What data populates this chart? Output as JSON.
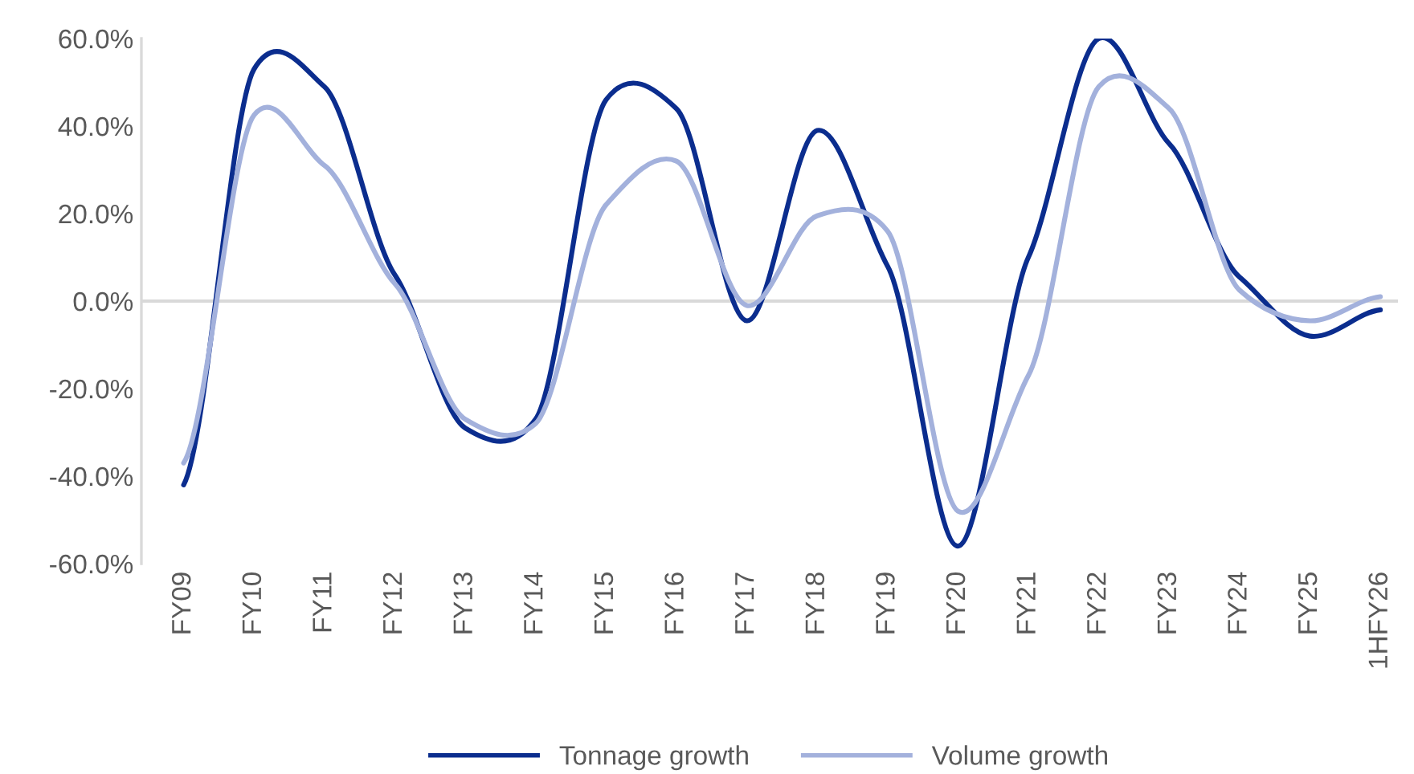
{
  "chart_data": {
    "type": "line",
    "categories": [
      "FY09",
      "FY10",
      "FY11",
      "FY12",
      "FY13",
      "FY14",
      "FY15",
      "FY16",
      "FY17",
      "FY18",
      "FY19",
      "FY20",
      "FY21",
      "FY22",
      "FY23",
      "FY24",
      "FY25",
      "1HFY26"
    ],
    "series": [
      {
        "name": "Tonnage growth",
        "color": "#0b2d8e",
        "values": [
          -42,
          53,
          49,
          6,
          -29,
          -27,
          46,
          44,
          -4.5,
          39,
          8,
          -56,
          10,
          60,
          36,
          5.5,
          -8,
          -2
        ]
      },
      {
        "name": "Volume growth",
        "color": "#a3b1dc",
        "values": [
          -37,
          42.5,
          31,
          4,
          -27,
          -28,
          22,
          32,
          -1,
          19.5,
          16,
          -48,
          -17,
          49,
          44,
          2.5,
          -4.5,
          1
        ]
      }
    ],
    "ylim": [
      -60,
      60
    ],
    "yticks": [
      {
        "value": -60,
        "label": "-60.0%"
      },
      {
        "value": -40,
        "label": "-40.0%"
      },
      {
        "value": -20,
        "label": "-20.0%"
      },
      {
        "value": 0,
        "label": "0.0%"
      },
      {
        "value": 20,
        "label": "20.0%"
      },
      {
        "value": 40,
        "label": "40.0%"
      },
      {
        "value": 60,
        "label": "60.0%"
      }
    ],
    "ref_lines": [
      {
        "axis": "y",
        "value": 0,
        "color": "#d9d9d9"
      }
    ],
    "grid": false,
    "legend": "bottom",
    "marker": "none",
    "line_style": "solid"
  }
}
